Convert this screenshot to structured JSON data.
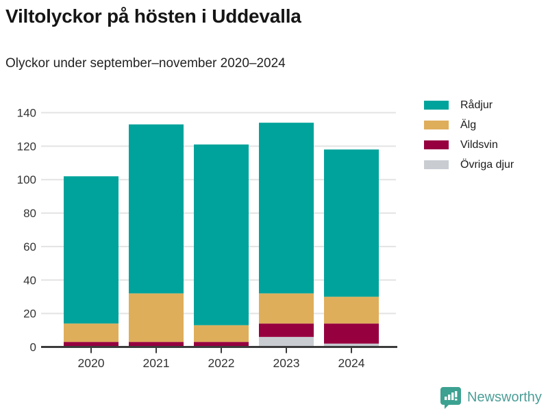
{
  "chart_data": {
    "type": "bar",
    "stacked": true,
    "title": "Viltolyckor på hösten i Uddevalla",
    "subtitle": "Olyckor under september–november 2020–2024",
    "categories": [
      "2020",
      "2021",
      "2022",
      "2023",
      "2024"
    ],
    "series": [
      {
        "name": "Rådjur",
        "color": "#00A39B",
        "values": [
          88,
          101,
          108,
          102,
          88
        ]
      },
      {
        "name": "Älg",
        "color": "#DFAE5B",
        "values": [
          11,
          29,
          10,
          18,
          16
        ]
      },
      {
        "name": "Vildsvin",
        "color": "#96003F",
        "values": [
          3,
          3,
          3,
          8,
          12
        ]
      },
      {
        "name": "Övriga djur",
        "color": "#C9CDD2",
        "values": [
          0,
          0,
          0,
          6,
          2
        ]
      }
    ],
    "totals": [
      102,
      133,
      121,
      134,
      118
    ],
    "xlabel": "",
    "ylabel": "",
    "ylim": [
      0,
      140
    ],
    "yticks": [
      0,
      20,
      40,
      60,
      80,
      100,
      120,
      140
    ],
    "grid": true,
    "legend_position": "right"
  },
  "colors": {
    "grid": "#E3E3E3",
    "axis": "#3B3B3B",
    "tick_label": "#333333",
    "logo_teal": "#4C9E97",
    "logo_icon_fill": "#3CA190"
  },
  "branding": {
    "logo_text": "Newsworthy"
  }
}
